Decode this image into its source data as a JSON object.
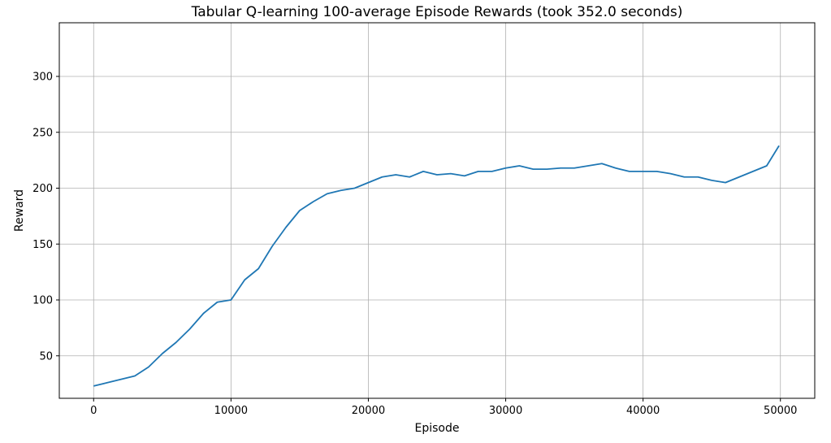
{
  "chart_data": {
    "type": "line",
    "title": "Tabular Q-learning 100-average Episode Rewards (took 352.0 seconds)",
    "xlabel": "Episode",
    "ylabel": "Reward",
    "xlim": [
      -2500,
      52500
    ],
    "ylim": [
      12,
      348
    ],
    "xticks": [
      0,
      10000,
      20000,
      30000,
      40000,
      50000
    ],
    "yticks": [
      50,
      100,
      150,
      200,
      250,
      300
    ],
    "grid": true,
    "line_color": "#1f77b4",
    "series": [
      {
        "x": [
          0,
          1000,
          2000,
          3000,
          4000,
          5000,
          6000,
          7000,
          8000,
          9000,
          10000,
          11000,
          12000,
          13000,
          14000,
          15000,
          16000,
          17000,
          18000,
          19000,
          20000,
          21000,
          22000,
          23000,
          24000,
          25000,
          26000,
          27000,
          28000,
          29000,
          30000,
          31000,
          32000,
          33000,
          34000,
          35000,
          36000,
          37000,
          38000,
          39000,
          40000,
          41000,
          42000,
          43000,
          44000,
          45000,
          46000,
          47000,
          48000,
          49000,
          49900
        ],
        "values": [
          23,
          26,
          29,
          32,
          40,
          52,
          62,
          74,
          88,
          98,
          100,
          118,
          128,
          148,
          165,
          180,
          188,
          195,
          198,
          200,
          205,
          210,
          212,
          210,
          215,
          212,
          213,
          211,
          215,
          215,
          218,
          220,
          217,
          217,
          218,
          218,
          220,
          222,
          218,
          215,
          215,
          215,
          213,
          210,
          210,
          207,
          205,
          210,
          215,
          220,
          238
        ]
      }
    ]
  }
}
